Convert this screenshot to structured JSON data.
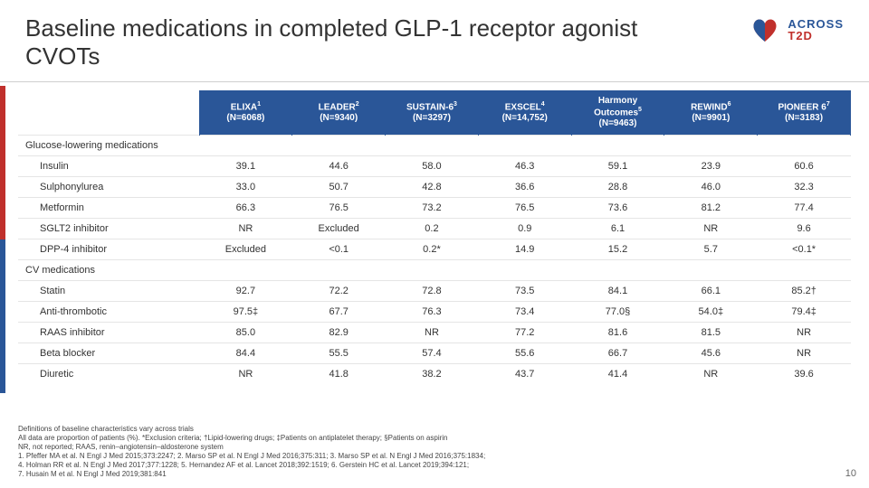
{
  "title": "Baseline medications in completed GLP‑1 receptor agonist CVOTs",
  "logo": {
    "line1": "ACROSS",
    "line2": "T2D"
  },
  "page_number": "10",
  "table": {
    "header_bg": "#2a5698",
    "header_color": "#ffffff",
    "columns": [
      {
        "name": "ELIXA",
        "sup": "1",
        "n": "(N=6068)"
      },
      {
        "name": "LEADER",
        "sup": "2",
        "n": "(N=9340)"
      },
      {
        "name": "SUSTAIN-6",
        "sup": "3",
        "n": "(N=3297)"
      },
      {
        "name": "EXSCEL",
        "sup": "4",
        "n": "(N=14,752)"
      },
      {
        "name": "Harmony Outcomes",
        "sup": "5",
        "n": "(N=9463)"
      },
      {
        "name": "REWIND",
        "sup": "6",
        "n": "(N=9901)"
      },
      {
        "name": "PIONEER 6",
        "sup": "7",
        "n": "(N=3183)"
      }
    ],
    "sections": [
      {
        "label": "Glucose-lowering medications",
        "rows": [
          {
            "label": "Insulin",
            "values": [
              "39.1",
              "44.6",
              "58.0",
              "46.3",
              "59.1",
              "23.9",
              "60.6"
            ]
          },
          {
            "label": "Sulphonylurea",
            "values": [
              "33.0",
              "50.7",
              "42.8",
              "36.6",
              "28.8",
              "46.0",
              "32.3"
            ]
          },
          {
            "label": "Metformin",
            "values": [
              "66.3",
              "76.5",
              "73.2",
              "76.5",
              "73.6",
              "81.2",
              "77.4"
            ]
          },
          {
            "label": "SGLT2 inhibitor",
            "values": [
              "NR",
              "Excluded",
              "0.2",
              "0.9",
              "6.1",
              "NR",
              "9.6"
            ]
          },
          {
            "label": "DPP-4 inhibitor",
            "values": [
              "Excluded",
              "<0.1",
              "0.2*",
              "14.9",
              "15.2",
              "5.7",
              "<0.1*"
            ]
          }
        ]
      },
      {
        "label": "CV medications",
        "rows": [
          {
            "label": "Statin",
            "values": [
              "92.7",
              "72.2",
              "72.8",
              "73.5",
              "84.1",
              "66.1",
              "85.2†"
            ]
          },
          {
            "label": "Anti-thrombotic",
            "values": [
              "97.5‡",
              "67.7",
              "76.3",
              "73.4",
              "77.0§",
              "54.0‡",
              "79.4‡"
            ]
          },
          {
            "label": "RAAS inhibitor",
            "values": [
              "85.0",
              "82.9",
              "NR",
              "77.2",
              "81.6",
              "81.5",
              "NR"
            ]
          },
          {
            "label": "Beta blocker",
            "values": [
              "84.4",
              "55.5",
              "57.4",
              "55.6",
              "66.7",
              "45.6",
              "NR"
            ]
          },
          {
            "label": "Diuretic",
            "values": [
              "NR",
              "41.8",
              "38.2",
              "43.7",
              "41.4",
              "NR",
              "39.6"
            ]
          }
        ]
      }
    ]
  },
  "footnotes": [
    "Definitions of baseline characteristics vary across trials",
    "All data are proportion of patients (%). *Exclusion criteria; †Lipid-lowering drugs; ‡Patients on antiplatelet therapy; §Patients on aspirin",
    "NR, not reported; RAAS, renin–angiotensin–aldosterone system",
    "1. Pfeffer MA et al. N Engl J Med 2015;373:2247; 2. Marso SP et al. N Engl J Med 2016;375:311; 3. Marso SP et al. N Engl J Med 2016;375:1834;",
    "4. Holman RR et al. N Engl J Med 2017;377:1228; 5. Hernandez AF et al. Lancet 2018;392:1519; 6. Gerstein HC et al. Lancet 2019;394:121;",
    "7. Husain M et al. N Engl J Med 2019;381:841"
  ]
}
